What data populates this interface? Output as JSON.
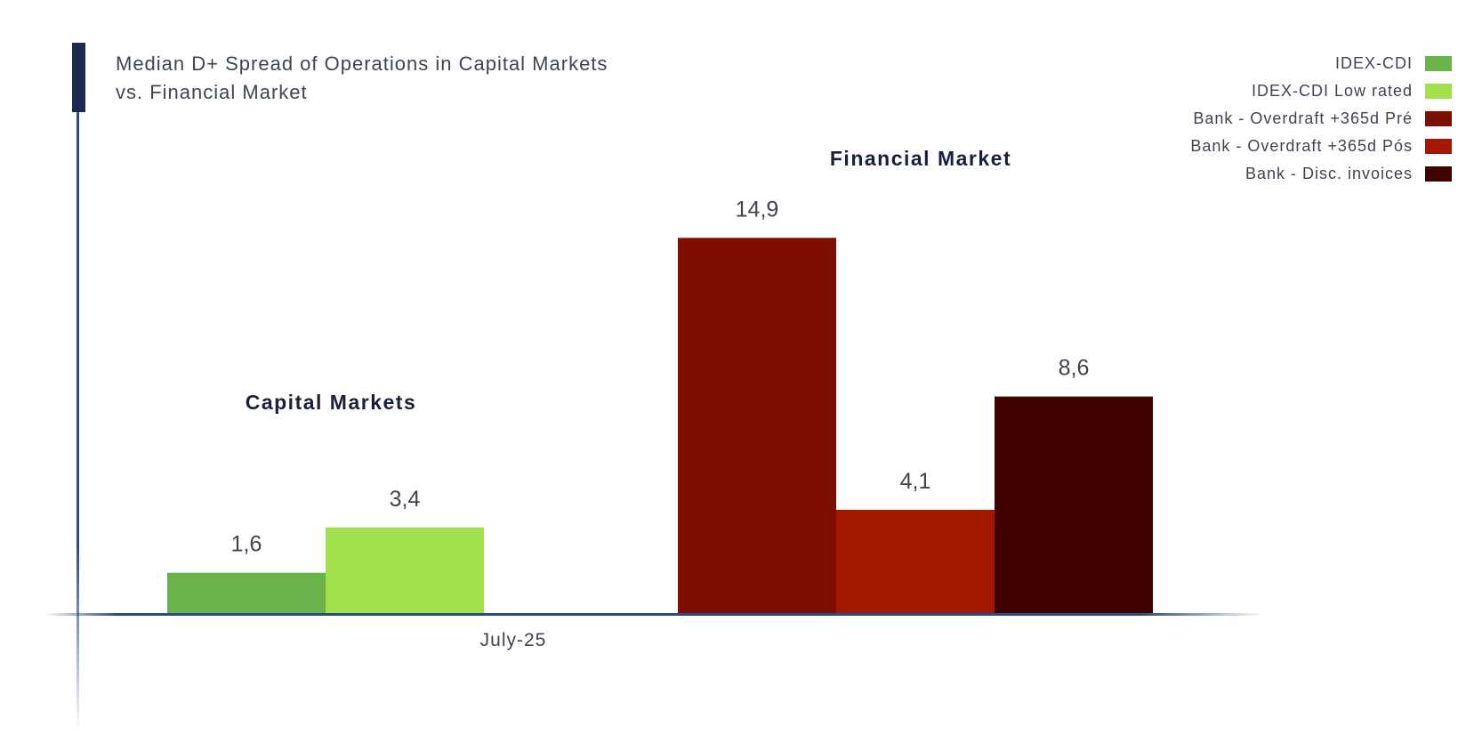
{
  "chart_data": {
    "type": "bar",
    "title": "Median D+ Spread of Operations in Capital Markets vs. Financial Market",
    "x_tick_label": "July-25",
    "ylim": [
      0,
      16
    ],
    "grid": false,
    "legend_position": "top-right",
    "groups": [
      {
        "label": "Capital Markets",
        "series": [
          {
            "name": "IDEX-CDI",
            "value": 1.6,
            "value_label": "1,6",
            "color": "#6ab24a"
          },
          {
            "name": "IDEX-CDI Low rated",
            "value": 3.4,
            "value_label": "3,4",
            "color": "#a3e04e"
          }
        ]
      },
      {
        "label": "Financial Market",
        "series": [
          {
            "name": "Bank - Overdraft +365d Pré",
            "value": 14.9,
            "value_label": "14,9",
            "color": "#7e0e00"
          },
          {
            "name": "Bank - Overdraft +365d Pós",
            "value": 4.1,
            "value_label": "4,1",
            "color": "#a51800"
          },
          {
            "name": "Bank - Disc. invoices",
            "value": 8.6,
            "value_label": "8,6",
            "color": "#3f0400"
          }
        ]
      }
    ]
  }
}
